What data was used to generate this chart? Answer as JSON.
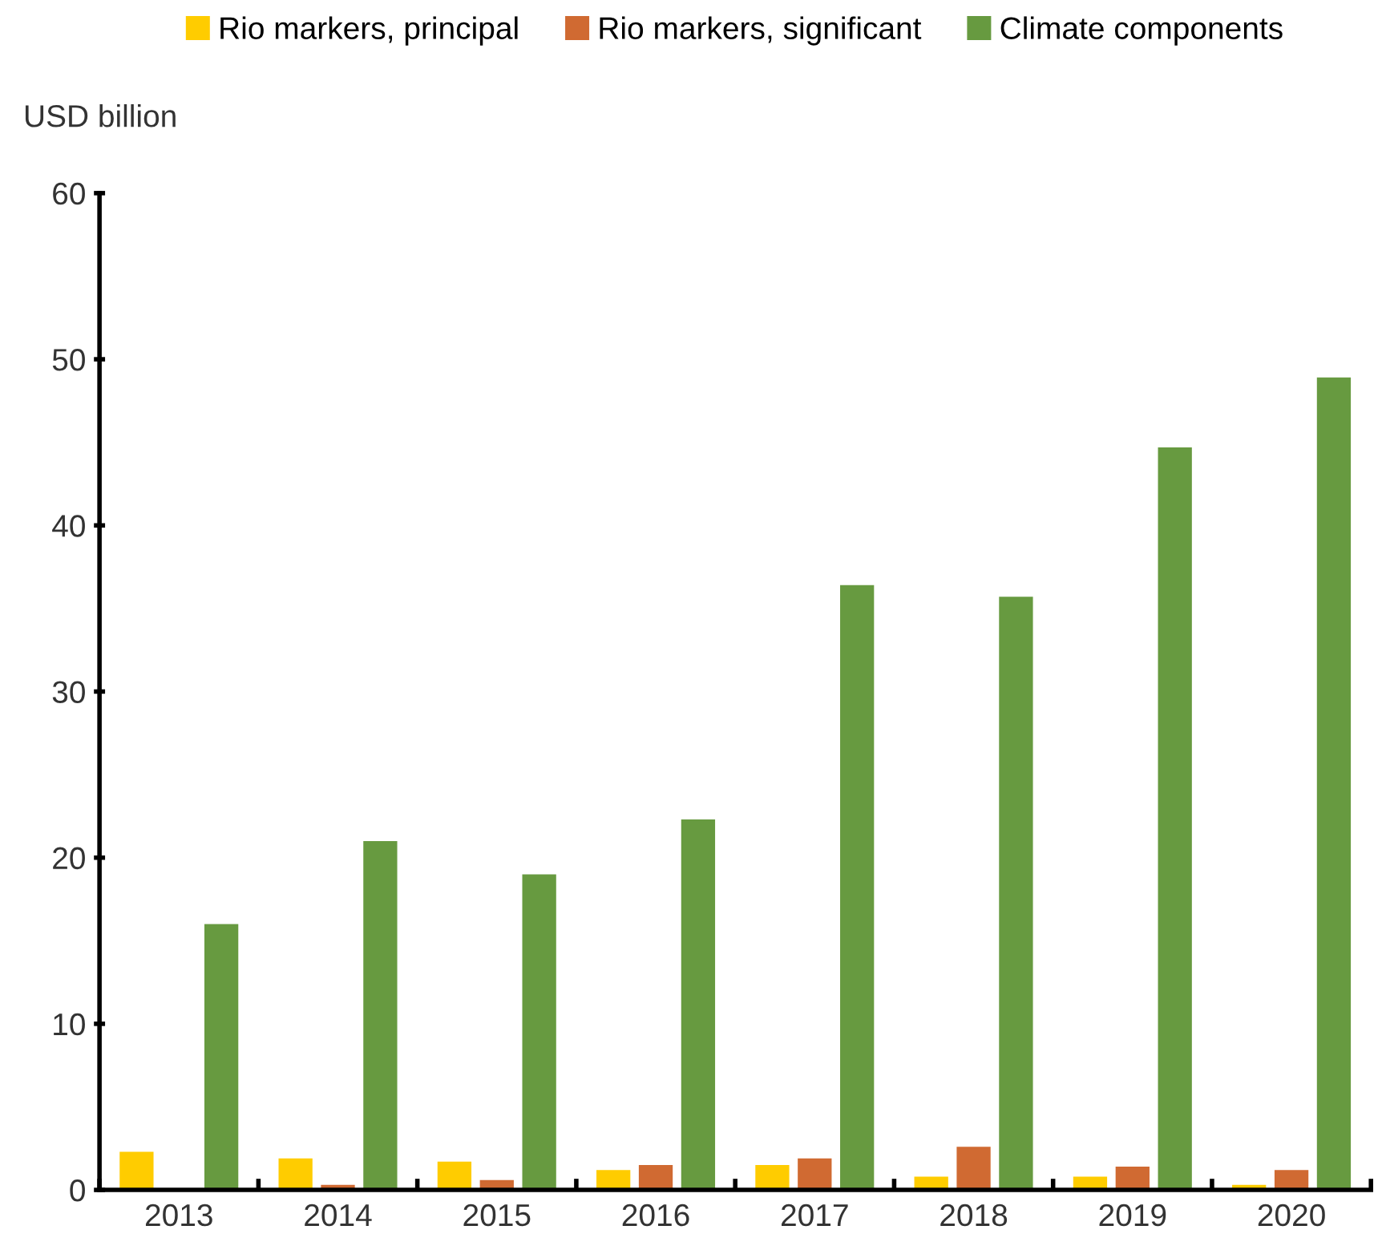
{
  "chart_data": {
    "type": "bar",
    "ylabel": "USD billion",
    "categories": [
      "2013",
      "2014",
      "2015",
      "2016",
      "2017",
      "2018",
      "2019",
      "2020"
    ],
    "series": [
      {
        "name": "Rio markers, principal",
        "color": "#ffcc00",
        "values": [
          2.3,
          1.9,
          1.7,
          1.2,
          1.5,
          0.8,
          0.8,
          0.3
        ]
      },
      {
        "name": "Rio markers, significant",
        "color": "#d06a32",
        "values": [
          null,
          0.3,
          0.6,
          1.5,
          1.9,
          2.6,
          1.4,
          1.2
        ]
      },
      {
        "name": "Climate components",
        "color": "#679a40",
        "values": [
          16,
          21,
          19,
          22.3,
          36.4,
          35.7,
          44.7,
          48.9
        ]
      }
    ],
    "ylim": [
      0,
      60
    ],
    "yticks": [
      0,
      10,
      20,
      30,
      40,
      50,
      60
    ],
    "grid": false,
    "legend": "top"
  }
}
